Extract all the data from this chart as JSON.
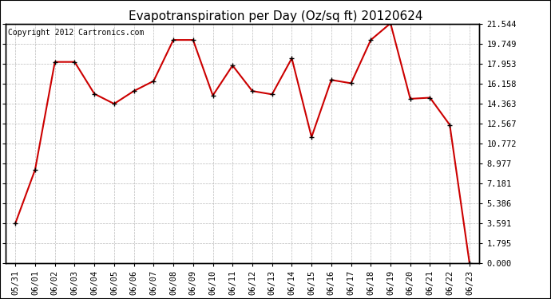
{
  "title": "Evapotranspiration per Day (Oz/sq ft) 20120624",
  "copyright": "Copyright 2012 Cartronics.com",
  "x_labels": [
    "05/31",
    "06/01",
    "06/02",
    "06/03",
    "06/04",
    "06/05",
    "06/06",
    "06/07",
    "06/08",
    "06/09",
    "06/10",
    "06/11",
    "06/12",
    "06/13",
    "06/14",
    "06/15",
    "06/16",
    "06/17",
    "06/18",
    "06/19",
    "06/20",
    "06/21",
    "06/22",
    "06/23"
  ],
  "y_values": [
    3.591,
    8.424,
    18.12,
    18.12,
    15.25,
    14.35,
    15.5,
    16.4,
    20.1,
    20.1,
    15.1,
    17.8,
    15.5,
    15.2,
    18.45,
    11.35,
    16.5,
    16.2,
    20.1,
    21.6,
    14.8,
    14.9,
    12.45,
    0
  ],
  "y_ticks": [
    0.0,
    1.795,
    3.591,
    5.386,
    7.181,
    8.977,
    10.772,
    12.567,
    14.363,
    16.158,
    17.953,
    19.749,
    21.544
  ],
  "line_color": "#cc0000",
  "marker": "+",
  "marker_color": "#000000",
  "marker_size": 5,
  "line_width": 1.5,
  "bg_color": "#ffffff",
  "plot_bg_color": "#ffffff",
  "grid_color": "#aaaaaa",
  "title_fontsize": 11,
  "copyright_fontsize": 7,
  "tick_fontsize": 7.5,
  "ylabel_right": true
}
